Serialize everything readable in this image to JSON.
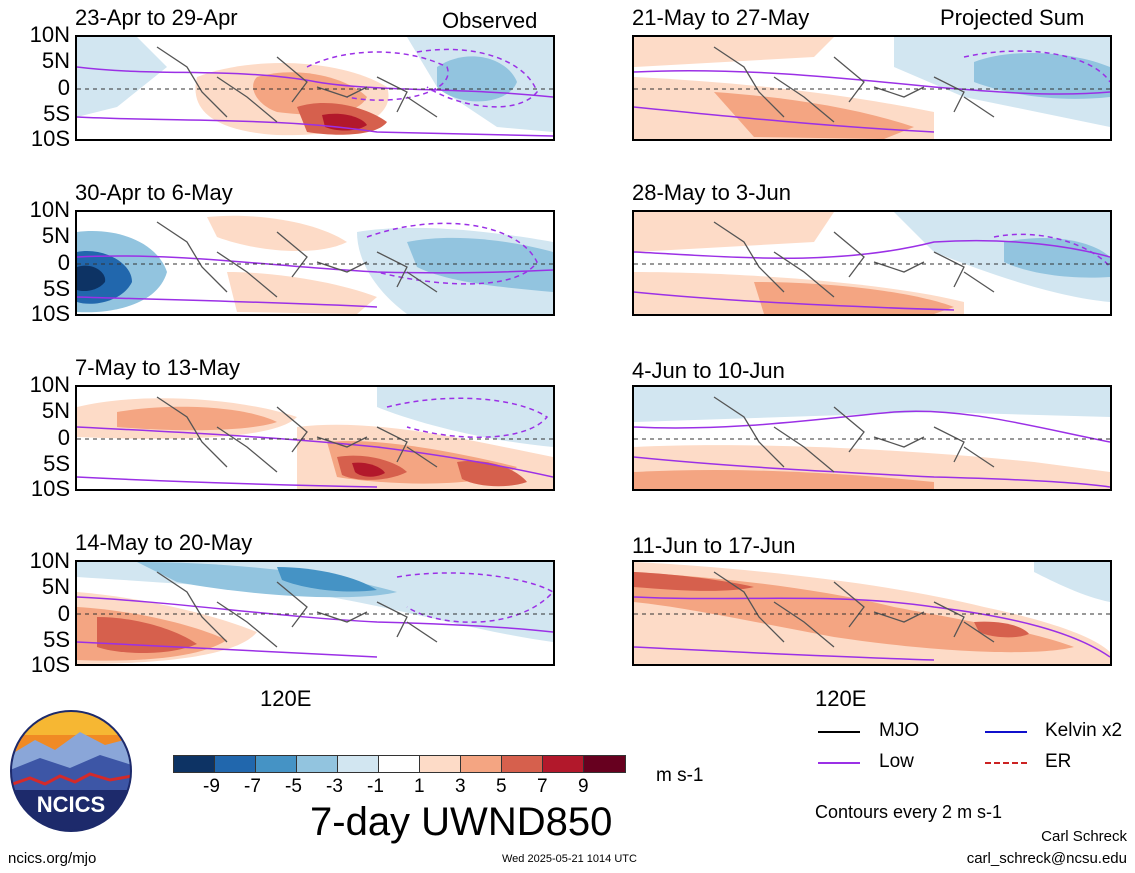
{
  "panels": [
    {
      "title": "23-Apr to 29-Apr",
      "tag": "Observed"
    },
    {
      "title": "21-May to 27-May",
      "tag": "Projected Sum"
    },
    {
      "title": "30-Apr to 6-May",
      "tag": ""
    },
    {
      "title": "28-May to 3-Jun",
      "tag": ""
    },
    {
      "title": "7-May to 13-May",
      "tag": ""
    },
    {
      "title": "4-Jun to 10-Jun",
      "tag": ""
    },
    {
      "title": "14-May to 20-May",
      "tag": ""
    },
    {
      "title": "11-Jun to 17-Jun",
      "tag": ""
    }
  ],
  "lat_labels": [
    "10N",
    "5N",
    "0",
    "5S",
    "10S"
  ],
  "lon_label": "120E",
  "colorbar": {
    "labels": [
      "-9",
      "-7",
      "-5",
      "-3",
      "-1",
      "1",
      "3",
      "5",
      "7",
      "9"
    ],
    "colors": [
      "#0d3364",
      "#2167ad",
      "#4593c5",
      "#92c4df",
      "#d2e6f1",
      "#ffffff",
      "#fddbc7",
      "#f4a582",
      "#d6604d",
      "#b2182b",
      "#67001f"
    ],
    "units": "m s-1",
    "title": "7-day UWND850"
  },
  "legend": {
    "items": [
      {
        "label": "MJO",
        "color": "#000000",
        "style": "solid"
      },
      {
        "label": "Kelvin x2",
        "color": "#1010cc",
        "style": "solid"
      },
      {
        "label": "Low",
        "color": "#9b30e6",
        "style": "solid"
      },
      {
        "label": "ER",
        "color": "#cc2222",
        "style": "dashed"
      }
    ],
    "note": "Contours every 2 m s-1"
  },
  "logo": {
    "text": "NCICS"
  },
  "footer": {
    "url": "ncics.org/mjo",
    "timestamp": "Wed 2025-05-21 1014 UTC",
    "author": "Carl Schreck",
    "email": "carl_schreck@ncsu.edu"
  }
}
